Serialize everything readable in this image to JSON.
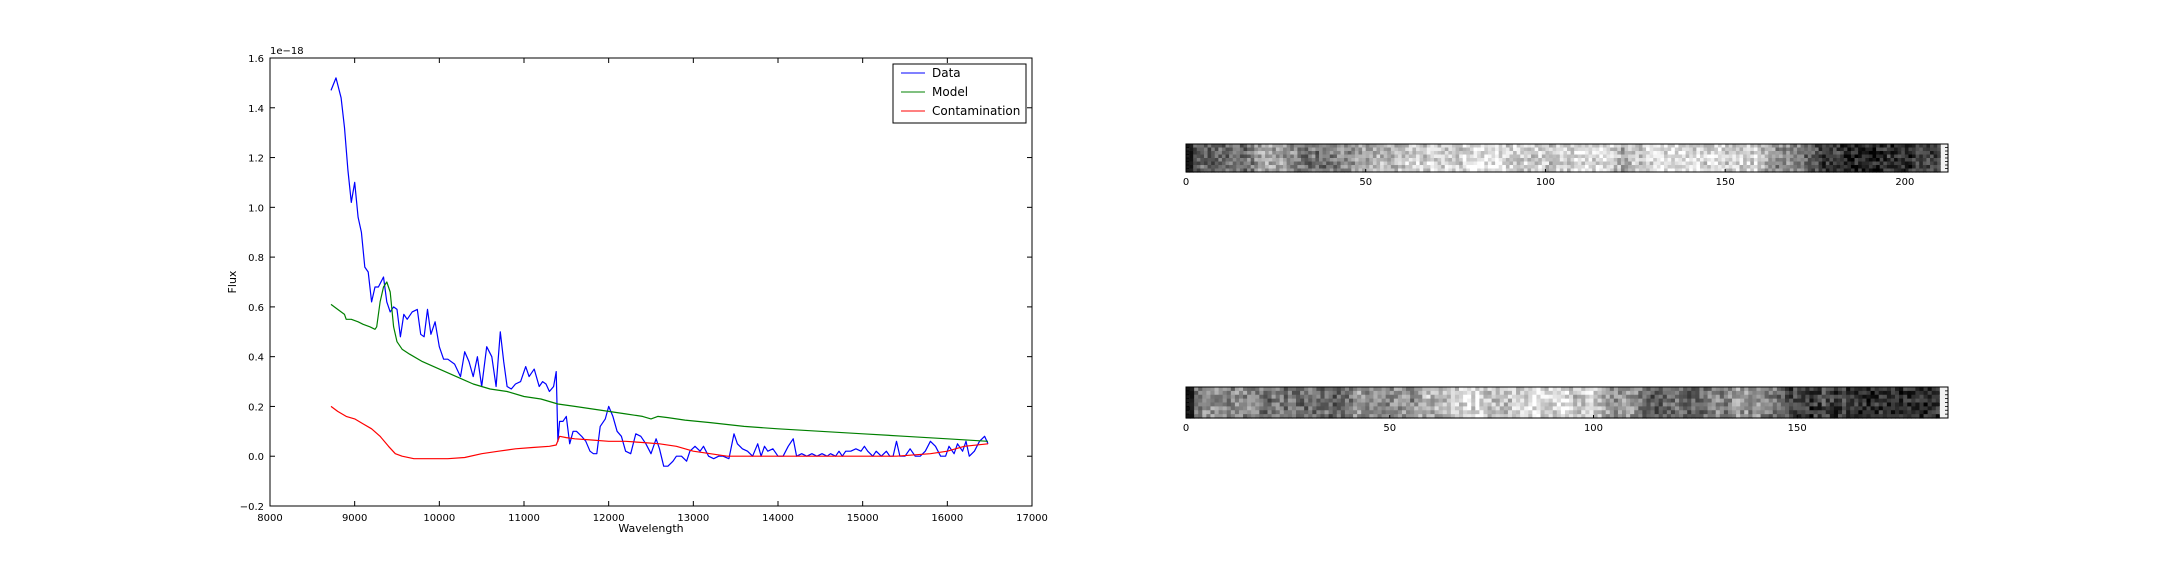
{
  "chart_data": [
    {
      "type": "line",
      "title": "",
      "xlabel": "Wavelength",
      "ylabel": "Flux",
      "offset_text": "1e−18",
      "xlim": [
        8000,
        17000
      ],
      "ylim": [
        -0.2,
        1.6
      ],
      "xticks": [
        8000,
        9000,
        10000,
        11000,
        12000,
        13000,
        14000,
        15000,
        16000,
        17000
      ],
      "xtick_labels": [
        "8000",
        "9000",
        "10000",
        "11000",
        "12000",
        "13000",
        "14000",
        "15000",
        "16000",
        "17000"
      ],
      "yticks": [
        -0.2,
        0.0,
        0.2,
        0.4,
        0.6,
        0.8,
        1.0,
        1.2,
        1.4,
        1.6
      ],
      "ytick_labels": [
        "−0.2",
        "0.0",
        "0.2",
        "0.4",
        "0.6",
        "0.8",
        "1.0",
        "1.2",
        "1.4",
        "1.6"
      ],
      "legend_position": "top-right",
      "series": [
        {
          "name": "Data",
          "color": "#0000ff",
          "points": [
            [
              8720,
              1.47
            ],
            [
              8780,
              1.52
            ],
            [
              8840,
              1.44
            ],
            [
              8880,
              1.32
            ],
            [
              8920,
              1.15
            ],
            [
              8960,
              1.02
            ],
            [
              9000,
              1.1
            ],
            [
              9040,
              0.96
            ],
            [
              9080,
              0.9
            ],
            [
              9120,
              0.76
            ],
            [
              9160,
              0.74
            ],
            [
              9200,
              0.62
            ],
            [
              9240,
              0.68
            ],
            [
              9280,
              0.68
            ],
            [
              9340,
              0.72
            ],
            [
              9380,
              0.62
            ],
            [
              9420,
              0.58
            ],
            [
              9460,
              0.6
            ],
            [
              9500,
              0.59
            ],
            [
              9540,
              0.48
            ],
            [
              9580,
              0.57
            ],
            [
              9620,
              0.55
            ],
            [
              9680,
              0.58
            ],
            [
              9740,
              0.59
            ],
            [
              9780,
              0.49
            ],
            [
              9820,
              0.48
            ],
            [
              9860,
              0.59
            ],
            [
              9900,
              0.49
            ],
            [
              9950,
              0.54
            ],
            [
              10000,
              0.44
            ],
            [
              10050,
              0.39
            ],
            [
              10100,
              0.39
            ],
            [
              10180,
              0.37
            ],
            [
              10250,
              0.32
            ],
            [
              10300,
              0.42
            ],
            [
              10350,
              0.38
            ],
            [
              10400,
              0.32
            ],
            [
              10450,
              0.4
            ],
            [
              10500,
              0.28
            ],
            [
              10560,
              0.44
            ],
            [
              10620,
              0.4
            ],
            [
              10670,
              0.28
            ],
            [
              10720,
              0.5
            ],
            [
              10760,
              0.38
            ],
            [
              10800,
              0.28
            ],
            [
              10850,
              0.27
            ],
            [
              10900,
              0.29
            ],
            [
              10960,
              0.3
            ],
            [
              11020,
              0.36
            ],
            [
              11060,
              0.32
            ],
            [
              11120,
              0.35
            ],
            [
              11180,
              0.28
            ],
            [
              11220,
              0.3
            ],
            [
              11260,
              0.29
            ],
            [
              11300,
              0.26
            ],
            [
              11350,
              0.28
            ],
            [
              11380,
              0.34
            ],
            [
              11400,
              0.06
            ],
            [
              11420,
              0.14
            ],
            [
              11460,
              0.14
            ],
            [
              11500,
              0.16
            ],
            [
              11540,
              0.05
            ],
            [
              11580,
              0.1
            ],
            [
              11620,
              0.1
            ],
            [
              11680,
              0.08
            ],
            [
              11730,
              0.06
            ],
            [
              11780,
              0.02
            ],
            [
              11820,
              0.01
            ],
            [
              11860,
              0.01
            ],
            [
              11900,
              0.12
            ],
            [
              11960,
              0.15
            ],
            [
              12000,
              0.2
            ],
            [
              12050,
              0.16
            ],
            [
              12100,
              0.1
            ],
            [
              12150,
              0.08
            ],
            [
              12200,
              0.02
            ],
            [
              12260,
              0.01
            ],
            [
              12320,
              0.09
            ],
            [
              12380,
              0.08
            ],
            [
              12440,
              0.05
            ],
            [
              12500,
              0.01
            ],
            [
              12560,
              0.07
            ],
            [
              12600,
              0.03
            ],
            [
              12650,
              -0.04
            ],
            [
              12700,
              -0.04
            ],
            [
              12760,
              -0.02
            ],
            [
              12800,
              0.0
            ],
            [
              12860,
              0.0
            ],
            [
              12920,
              -0.02
            ],
            [
              12960,
              0.02
            ],
            [
              13020,
              0.04
            ],
            [
              13080,
              0.02
            ],
            [
              13120,
              0.04
            ],
            [
              13180,
              0.0
            ],
            [
              13240,
              -0.01
            ],
            [
              13300,
              0.0
            ],
            [
              13350,
              0.0
            ],
            [
              13420,
              -0.01
            ],
            [
              13480,
              0.09
            ],
            [
              13520,
              0.05
            ],
            [
              13580,
              0.03
            ],
            [
              13640,
              0.02
            ],
            [
              13700,
              0.0
            ],
            [
              13760,
              0.05
            ],
            [
              13800,
              0.0
            ],
            [
              13840,
              0.04
            ],
            [
              13880,
              0.02
            ],
            [
              13940,
              0.03
            ],
            [
              14000,
              0.0
            ],
            [
              14060,
              0.0
            ],
            [
              14120,
              0.04
            ],
            [
              14180,
              0.07
            ],
            [
              14220,
              0.0
            ],
            [
              14280,
              0.01
            ],
            [
              14340,
              0.0
            ],
            [
              14400,
              0.01
            ],
            [
              14460,
              0.0
            ],
            [
              14520,
              0.01
            ],
            [
              14580,
              0.0
            ],
            [
              14620,
              0.01
            ],
            [
              14680,
              0.0
            ],
            [
              14720,
              0.02
            ],
            [
              14760,
              0.0
            ],
            [
              14800,
              0.02
            ],
            [
              14860,
              0.02
            ],
            [
              14920,
              0.03
            ],
            [
              14980,
              0.02
            ],
            [
              15020,
              0.04
            ],
            [
              15060,
              0.02
            ],
            [
              15120,
              0.0
            ],
            [
              15160,
              0.02
            ],
            [
              15220,
              0.0
            ],
            [
              15280,
              0.02
            ],
            [
              15320,
              0.0
            ],
            [
              15360,
              0.0
            ],
            [
              15400,
              0.06
            ],
            [
              15440,
              0.0
            ],
            [
              15500,
              0.0
            ],
            [
              15560,
              0.03
            ],
            [
              15620,
              0.0
            ],
            [
              15680,
              0.0
            ],
            [
              15740,
              0.02
            ],
            [
              15800,
              0.06
            ],
            [
              15860,
              0.04
            ],
            [
              15920,
              0.0
            ],
            [
              15980,
              0.0
            ],
            [
              16020,
              0.04
            ],
            [
              16080,
              0.01
            ],
            [
              16120,
              0.05
            ],
            [
              16180,
              0.02
            ],
            [
              16220,
              0.06
            ],
            [
              16260,
              0.0
            ],
            [
              16320,
              0.02
            ],
            [
              16380,
              0.06
            ],
            [
              16440,
              0.08
            ],
            [
              16480,
              0.05
            ]
          ]
        },
        {
          "name": "Model",
          "color": "#008000",
          "points": [
            [
              8720,
              0.61
            ],
            [
              8800,
              0.59
            ],
            [
              8880,
              0.57
            ],
            [
              8900,
              0.55
            ],
            [
              8960,
              0.55
            ],
            [
              9040,
              0.54
            ],
            [
              9100,
              0.53
            ],
            [
              9180,
              0.52
            ],
            [
              9240,
              0.51
            ],
            [
              9260,
              0.52
            ],
            [
              9300,
              0.62
            ],
            [
              9340,
              0.68
            ],
            [
              9380,
              0.7
            ],
            [
              9420,
              0.66
            ],
            [
              9460,
              0.52
            ],
            [
              9500,
              0.46
            ],
            [
              9560,
              0.43
            ],
            [
              9650,
              0.41
            ],
            [
              9800,
              0.38
            ],
            [
              10000,
              0.35
            ],
            [
              10200,
              0.32
            ],
            [
              10400,
              0.29
            ],
            [
              10600,
              0.27
            ],
            [
              10800,
              0.26
            ],
            [
              11000,
              0.24
            ],
            [
              11200,
              0.23
            ],
            [
              11400,
              0.21
            ],
            [
              11600,
              0.2
            ],
            [
              11800,
              0.19
            ],
            [
              12000,
              0.18
            ],
            [
              12200,
              0.17
            ],
            [
              12400,
              0.16
            ],
            [
              12500,
              0.15
            ],
            [
              12580,
              0.16
            ],
            [
              12700,
              0.155
            ],
            [
              12900,
              0.145
            ],
            [
              13200,
              0.135
            ],
            [
              13600,
              0.12
            ],
            [
              14000,
              0.11
            ],
            [
              14500,
              0.1
            ],
            [
              15000,
              0.09
            ],
            [
              15500,
              0.08
            ],
            [
              16000,
              0.07
            ],
            [
              16480,
              0.06
            ]
          ]
        },
        {
          "name": "Contamination",
          "color": "#ff0000",
          "points": [
            [
              8720,
              0.2
            ],
            [
              8800,
              0.18
            ],
            [
              8900,
              0.16
            ],
            [
              9000,
              0.15
            ],
            [
              9100,
              0.13
            ],
            [
              9200,
              0.11
            ],
            [
              9300,
              0.08
            ],
            [
              9400,
              0.04
            ],
            [
              9480,
              0.01
            ],
            [
              9560,
              0.0
            ],
            [
              9700,
              -0.01
            ],
            [
              9900,
              -0.01
            ],
            [
              10100,
              -0.01
            ],
            [
              10300,
              -0.005
            ],
            [
              10500,
              0.01
            ],
            [
              10700,
              0.02
            ],
            [
              10900,
              0.03
            ],
            [
              11100,
              0.035
            ],
            [
              11300,
              0.04
            ],
            [
              11380,
              0.045
            ],
            [
              11420,
              0.08
            ],
            [
              11500,
              0.075
            ],
            [
              11600,
              0.07
            ],
            [
              11800,
              0.065
            ],
            [
              12000,
              0.06
            ],
            [
              12200,
              0.06
            ],
            [
              12400,
              0.055
            ],
            [
              12600,
              0.05
            ],
            [
              12800,
              0.04
            ],
            [
              13000,
              0.02
            ],
            [
              13200,
              0.01
            ],
            [
              13400,
              0.0
            ],
            [
              13800,
              0.0
            ],
            [
              14200,
              0.0
            ],
            [
              14600,
              0.0
            ],
            [
              15000,
              0.0
            ],
            [
              15400,
              0.0
            ],
            [
              15800,
              0.01
            ],
            [
              16000,
              0.02
            ],
            [
              16200,
              0.04
            ],
            [
              16480,
              0.05
            ]
          ]
        }
      ]
    },
    {
      "type": "heatmap",
      "title": "",
      "colormap": "gray",
      "xlim": [
        0,
        212
      ],
      "xticks": [
        0,
        50,
        100,
        150,
        200
      ],
      "xtick_labels": [
        "0",
        "50",
        "100",
        "150",
        "200"
      ],
      "rows": 8
    },
    {
      "type": "heatmap",
      "title": "",
      "colormap": "gray",
      "xlim": [
        0,
        187
      ],
      "xticks": [
        0,
        50,
        100,
        150
      ],
      "xtick_labels": [
        "0",
        "50",
        "100",
        "150"
      ],
      "rows": 8
    }
  ]
}
